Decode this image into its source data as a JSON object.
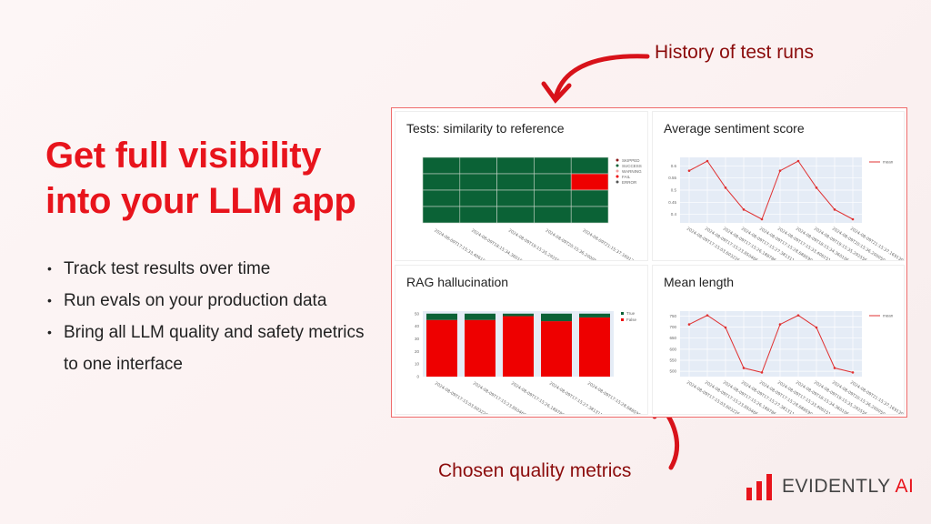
{
  "headline": {
    "line1": "Get full visibility",
    "line2": "into your LLM app"
  },
  "bullets": [
    "Track test results over time",
    "Run evals on your production data",
    "Bring all LLM quality and safety metrics to one interface"
  ],
  "callouts": {
    "top": "History of test runs",
    "bottom": "Chosen quality metrics"
  },
  "logo": {
    "name": "EVIDENTLY",
    "suffix": "AI"
  },
  "colors": {
    "accent": "#e8141c",
    "success": "#0b6236",
    "fail": "#ee0000",
    "plot_bg": "#e5ecf6"
  },
  "chart_data": [
    {
      "type": "heatmap",
      "title": "Tests: similarity to reference",
      "x": [
        "2024-08-09T17:15:33.406151",
        "2024-08-09T18:15:34.360106",
        "2024-08-09T19:15:35.292556",
        "2024-08-09T20:15:36.200050",
        "2024-08-09T21:15:37.169139"
      ],
      "rows": [
        [
          "SUCCESS",
          "SUCCESS",
          "SUCCESS",
          "SUCCESS",
          "SUCCESS"
        ],
        [
          "SUCCESS",
          "SUCCESS",
          "SUCCESS",
          "SUCCESS",
          "FAIL"
        ],
        [
          "SUCCESS",
          "SUCCESS",
          "SUCCESS",
          "SUCCESS",
          "SUCCESS"
        ],
        [
          "SUCCESS",
          "SUCCESS",
          "SUCCESS",
          "SUCCESS",
          "SUCCESS"
        ]
      ],
      "legend": [
        {
          "name": "SKIPPED",
          "color": "#8b1a1a"
        },
        {
          "name": "SUCCESS",
          "color": "#0b6236"
        },
        {
          "name": "WARNING",
          "color": "#f2a0a0"
        },
        {
          "name": "FAIL",
          "color": "#ee0000"
        },
        {
          "name": "ERROR",
          "color": "#555555"
        }
      ],
      "legend_position": "right"
    },
    {
      "type": "line",
      "title": "Average sentiment score",
      "x": [
        "2024-08-09T17:15:03.603226",
        "2024-08-09T17:15:23.850466",
        "2024-08-09T17:15:26.188786",
        "2024-08-09T17:15:27.381311",
        "2024-08-09T17:15:28.688590",
        "2024-08-09T17:15:33.406151",
        "2024-08-09T18:15:34.360106",
        "2024-08-09T19:15:35.292556",
        "2024-08-09T20:15:36.200050",
        "2024-08-09T21:15:37.169139"
      ],
      "series": [
        {
          "name": "mean",
          "values": [
            0.58,
            0.62,
            0.51,
            0.42,
            0.38,
            0.58,
            0.62,
            0.51,
            0.42,
            0.38
          ]
        }
      ],
      "yticks": [
        0.4,
        0.45,
        0.5,
        0.55,
        0.6
      ],
      "ylim": [
        0.365,
        0.635
      ],
      "grid": true,
      "legend_position": "top-right"
    },
    {
      "type": "bar",
      "stacked": true,
      "title": "RAG hallucination",
      "categories": [
        "2024-08-09T17:15:03.603226",
        "2024-08-09T17:15:23.850466",
        "2024-08-09T17:15:26.188786",
        "2024-08-09T17:15:27.381311",
        "2024-08-09T17:15:28.688590"
      ],
      "series": [
        {
          "name": "False",
          "color": "#ee0000",
          "values": [
            45,
            45,
            48,
            44,
            47
          ]
        },
        {
          "name": "True",
          "color": "#0b6236",
          "values": [
            5,
            5,
            2,
            6,
            3
          ]
        }
      ],
      "yticks": [
        0,
        10,
        20,
        30,
        40,
        50
      ],
      "ylim": [
        0,
        52
      ],
      "legend_position": "top-right"
    },
    {
      "type": "line",
      "title": "Mean length",
      "x": [
        "2024-08-09T17:15:03.603226",
        "2024-08-09T17:15:23.850466",
        "2024-08-09T17:15:26.188786",
        "2024-08-09T17:15:27.381311",
        "2024-08-09T17:15:28.688590",
        "2024-08-09T17:15:33.406151",
        "2024-08-09T18:15:34.360106",
        "2024-08-09T19:15:35.292556",
        "2024-08-09T20:15:36.200050",
        "2024-08-09T21:15:37.169139"
      ],
      "series": [
        {
          "name": "mean",
          "values": [
            712,
            753,
            698,
            515,
            495,
            712,
            753,
            698,
            515,
            495
          ]
        }
      ],
      "yticks": [
        500,
        550,
        600,
        650,
        700,
        750
      ],
      "ylim": [
        476,
        772
      ],
      "grid": true,
      "legend_position": "top-right"
    }
  ]
}
